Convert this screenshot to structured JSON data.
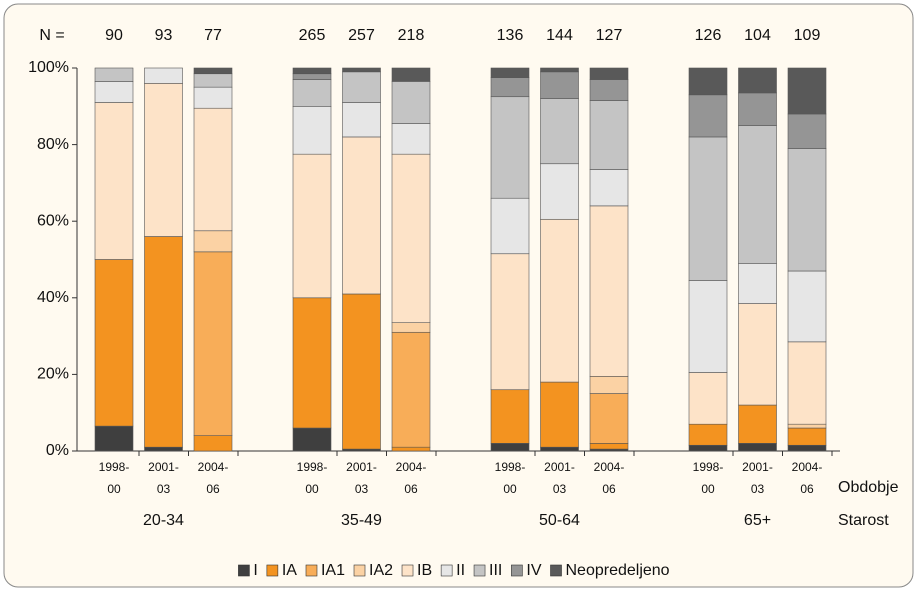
{
  "chart_data": {
    "type": "stacked-bar",
    "n_label": "N =",
    "n_values": [
      90,
      93,
      77,
      265,
      257,
      218,
      136,
      144,
      127,
      126,
      104,
      109
    ],
    "categories": [
      [
        "1998-",
        "00"
      ],
      [
        "2001-",
        "03"
      ],
      [
        "2004-",
        "06"
      ],
      [
        "1998-",
        "00"
      ],
      [
        "2001-",
        "03"
      ],
      [
        "2004-",
        "06"
      ],
      [
        "1998-",
        "00"
      ],
      [
        "2001-",
        "03"
      ],
      [
        "2004-",
        "06"
      ],
      [
        "1998-",
        "00"
      ],
      [
        "2001-",
        "03"
      ],
      [
        "2004-",
        "06"
      ]
    ],
    "groups": [
      "20-34",
      "35-49",
      "50-64",
      "65+"
    ],
    "x_label": "Obdobje",
    "group_label": "Starost",
    "ylim": [
      0,
      100
    ],
    "yticks": [
      {
        "value": 0,
        "label": "0%"
      },
      {
        "value": 20,
        "label": "20%"
      },
      {
        "value": 40,
        "label": "40%"
      },
      {
        "value": 60,
        "label": "60%"
      },
      {
        "value": 80,
        "label": "80%"
      },
      {
        "value": 100,
        "label": "100%"
      }
    ],
    "series": [
      {
        "name": "I",
        "color": "#3f3f3f",
        "values": [
          6.5,
          1,
          0,
          6,
          0.5,
          0,
          2,
          1,
          0.5,
          1.5,
          2,
          1.5
        ]
      },
      {
        "name": "IA",
        "color": "#f39320",
        "values": [
          43.5,
          55,
          4,
          34,
          40.5,
          1,
          14,
          17,
          1.5,
          5.5,
          10,
          4.5
        ]
      },
      {
        "name": "IA1",
        "color": "#f8ad58",
        "values": [
          0,
          0,
          48,
          0,
          0,
          30,
          0,
          0,
          13,
          0,
          0,
          0
        ]
      },
      {
        "name": "IA2",
        "color": "#fbd2a4",
        "values": [
          0,
          0,
          5.5,
          0,
          0,
          2.5,
          0,
          0,
          4.5,
          0,
          0,
          1
        ]
      },
      {
        "name": "IB",
        "color": "#fde3c8",
        "values": [
          41,
          40,
          32,
          37.5,
          41,
          44,
          35.5,
          42.5,
          44.5,
          13.5,
          26.5,
          21.5
        ]
      },
      {
        "name": "II",
        "color": "#e6e6e6",
        "values": [
          5.5,
          4,
          5.5,
          12.5,
          9,
          8,
          14.5,
          14.5,
          9.5,
          24,
          10.5,
          18.5
        ]
      },
      {
        "name": "III",
        "color": "#c4c4c4",
        "values": [
          3.5,
          0,
          3.5,
          7,
          8,
          11,
          26.5,
          17,
          18,
          37.5,
          36,
          32
        ]
      },
      {
        "name": "IV",
        "color": "#959595",
        "values": [
          0,
          0,
          0,
          1.5,
          0,
          0,
          5,
          7,
          5.5,
          11,
          8.5,
          9
        ]
      },
      {
        "name": "Neopredeljeno",
        "color": "#595959",
        "values": [
          0,
          0,
          1.5,
          1.5,
          1,
          3.5,
          2.5,
          1,
          3,
          7,
          6.5,
          12
        ]
      }
    ]
  }
}
